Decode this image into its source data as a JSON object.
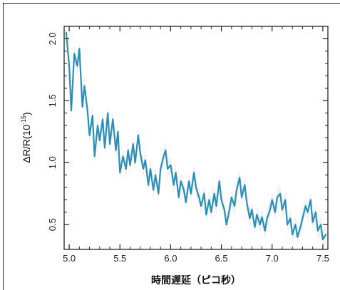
{
  "chart_data": {
    "type": "line",
    "title": "",
    "xlabel": "時間遅延（ピコ秒）",
    "ylabel_main": "ΔR/R(10",
    "ylabel_exp": "-15",
    "ylabel_close": ")",
    "xlim": [
      4.95,
      7.55
    ],
    "ylim": [
      0.3,
      2.1
    ],
    "x_ticks": [
      5.0,
      5.5,
      6.0,
      6.5,
      7.0,
      7.5
    ],
    "x_tick_labels": [
      "5.0",
      "5.5",
      "6.0",
      "6.5",
      "7.0",
      "7.5"
    ],
    "y_ticks": [
      0.5,
      1.0,
      1.5,
      2.0
    ],
    "y_tick_labels": [
      "0.5",
      "1.0",
      "1.5",
      "2.0"
    ],
    "grid": false,
    "line_color": "#2a8fb8",
    "band_color": "#e3e6e3",
    "series": [
      {
        "x": [
          4.97,
          5.0,
          5.02,
          5.05,
          5.08,
          5.1,
          5.13,
          5.15,
          5.18,
          5.2,
          5.23,
          5.25,
          5.28,
          5.3,
          5.33,
          5.35,
          5.38,
          5.4,
          5.43,
          5.46,
          5.48,
          5.5,
          5.53,
          5.56,
          5.58,
          5.6,
          5.63,
          5.65,
          5.68,
          5.7,
          5.73,
          5.75,
          5.78,
          5.8,
          5.83,
          5.85,
          5.88,
          5.9,
          5.93,
          5.95,
          5.97,
          6.0,
          6.03,
          6.05,
          6.08,
          6.1,
          6.13,
          6.15,
          6.18,
          6.2,
          6.23,
          6.25,
          6.28,
          6.3,
          6.33,
          6.35,
          6.38,
          6.4,
          6.43,
          6.45,
          6.48,
          6.5,
          6.53,
          6.55,
          6.58,
          6.6,
          6.63,
          6.65,
          6.68,
          6.7,
          6.73,
          6.75,
          6.78,
          6.8,
          6.83,
          6.85,
          6.88,
          6.9,
          6.93,
          6.95,
          6.98,
          7.0,
          7.03,
          7.05,
          7.08,
          7.1,
          7.13,
          7.15,
          7.18,
          7.2,
          7.23,
          7.25,
          7.28,
          7.3,
          7.33,
          7.35,
          7.38,
          7.4,
          7.43,
          7.45,
          7.48,
          7.5,
          7.53
        ],
        "y": [
          2.05,
          1.78,
          1.42,
          1.88,
          1.78,
          1.92,
          1.45,
          1.62,
          1.42,
          1.22,
          1.38,
          1.05,
          1.3,
          1.18,
          1.35,
          1.12,
          1.4,
          1.15,
          1.35,
          1.1,
          1.25,
          0.92,
          1.05,
          0.95,
          1.1,
          0.98,
          1.15,
          1.0,
          1.22,
          1.08,
          0.95,
          1.02,
          0.82,
          0.95,
          0.78,
          0.9,
          0.75,
          0.95,
          1.05,
          1.1,
          0.95,
          0.98,
          0.82,
          0.92,
          0.72,
          0.85,
          0.78,
          0.68,
          0.85,
          0.75,
          0.92,
          0.8,
          0.72,
          0.65,
          0.75,
          0.58,
          0.7,
          0.6,
          0.75,
          0.65,
          0.85,
          0.7,
          0.62,
          0.5,
          0.62,
          0.72,
          0.65,
          0.78,
          0.88,
          0.72,
          0.82,
          0.68,
          0.55,
          0.62,
          0.48,
          0.58,
          0.5,
          0.56,
          0.45,
          0.55,
          0.62,
          0.7,
          0.6,
          0.72,
          0.75,
          0.62,
          0.7,
          0.5,
          0.55,
          0.42,
          0.5,
          0.4,
          0.48,
          0.55,
          0.65,
          0.6,
          0.7,
          0.52,
          0.6,
          0.45,
          0.5,
          0.38,
          0.42
        ]
      }
    ]
  }
}
